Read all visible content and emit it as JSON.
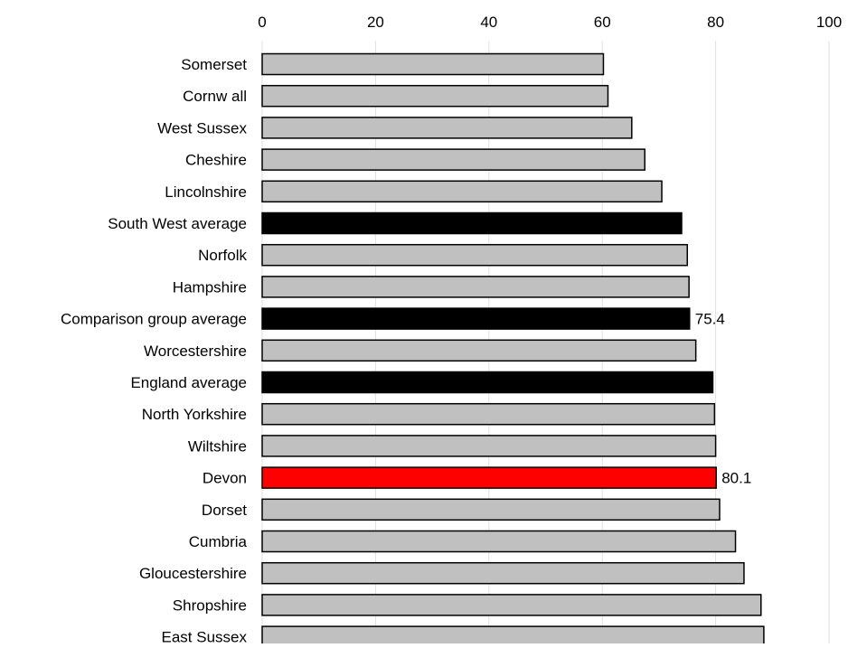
{
  "chart_data": {
    "type": "bar",
    "orientation": "horizontal",
    "xlim": [
      0,
      100
    ],
    "x_ticks": [
      "0",
      "20",
      "40",
      "60",
      "80",
      "100"
    ],
    "x_axis_position": "top",
    "grid": true,
    "categories": [
      "Somerset",
      "Cornw all",
      "West Sussex",
      "Cheshire",
      "Lincolnshire",
      "South West average",
      "Norfolk",
      "Hampshire",
      "Comparison group average",
      "Worcestershire",
      "England average",
      "North Yorkshire",
      "Wiltshire",
      "Devon",
      "Dorset",
      "Cumbria",
      "Gloucestershire",
      "Shropshire",
      "East Sussex"
    ],
    "values": [
      60.2,
      61.0,
      65.2,
      67.5,
      70.5,
      74.0,
      75.0,
      75.3,
      75.4,
      76.5,
      79.5,
      79.8,
      80.0,
      80.1,
      80.7,
      83.5,
      85.0,
      88.0,
      88.5
    ],
    "bar_colors": [
      "#c0c0c0",
      "#c0c0c0",
      "#c0c0c0",
      "#c0c0c0",
      "#c0c0c0",
      "#000000",
      "#c0c0c0",
      "#c0c0c0",
      "#000000",
      "#c0c0c0",
      "#000000",
      "#c0c0c0",
      "#c0c0c0",
      "#ff0000",
      "#c0c0c0",
      "#c0c0c0",
      "#c0c0c0",
      "#c0c0c0",
      "#c0c0c0"
    ],
    "data_labels": [
      {
        "category": "Comparison group average",
        "text": "75.4"
      },
      {
        "category": "Devon",
        "text": "80.1"
      }
    ]
  },
  "colors": {
    "default_bar": "#c0c0c0",
    "average_bar": "#000000",
    "highlight_bar": "#ff0000",
    "bar_outline": "#000000",
    "gridline": "#e0e0e0"
  }
}
